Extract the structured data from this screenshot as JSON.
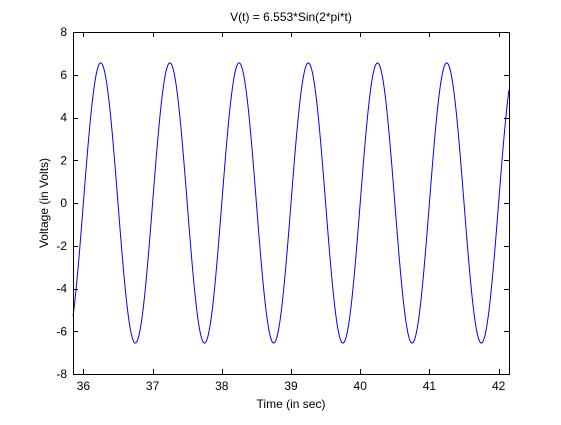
{
  "chart_data": {
    "type": "line",
    "title": "V(t) = 6.553*Sin(2*pi*t)",
    "xlabel": "Time (in sec)",
    "ylabel": "Voltage (in Volts)",
    "xlim": [
      35.85,
      42.15
    ],
    "ylim": [
      -8,
      8
    ],
    "xticks": [
      36,
      37,
      38,
      39,
      40,
      41,
      42
    ],
    "yticks": [
      -8,
      -6,
      -4,
      -2,
      0,
      2,
      4,
      6,
      8
    ],
    "grid": false,
    "legend": "none",
    "series": [
      {
        "function": "6.553*sin(2*pi*t)",
        "amplitude": 6.553,
        "frequency": 1,
        "x_start": 35.85,
        "x_end": 42.15,
        "color": "#0000ff"
      }
    ]
  }
}
